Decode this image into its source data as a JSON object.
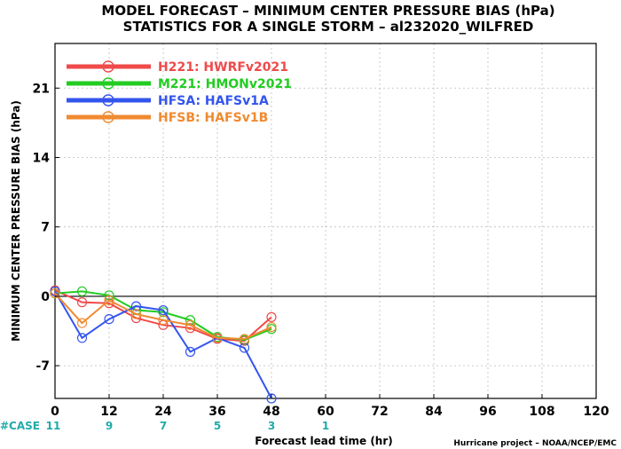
{
  "chart_data": {
    "type": "line",
    "title": "MODEL FORECAST – MINIMUM CENTER PRESSURE BIAS (hPa)",
    "subtitle": "STATISTICS FOR A SINGLE STORM – al232020_WILFRED",
    "xlabel": "Forecast lead time (hr)",
    "ylabel": "MINIMUM CENTER PRESSURE BIAS (hPa)",
    "xlim": [
      0,
      120
    ],
    "ylim": [
      -10.3,
      25.5
    ],
    "x_ticks": [
      0,
      12,
      24,
      36,
      48,
      60,
      72,
      84,
      96,
      108,
      120
    ],
    "x_tick_labels": [
      "0",
      "12",
      "24",
      "36",
      "48",
      "60",
      "72",
      "84",
      "96",
      "108",
      "120"
    ],
    "y_ticks": [
      -7,
      0,
      7,
      14,
      21
    ],
    "y_tick_labels": [
      "-7",
      "0",
      "7",
      "14",
      "21"
    ],
    "grid": true,
    "legend_position": "top-left",
    "series": [
      {
        "name": "H221:  HWRFv2021",
        "color": "#f04a4a",
        "x": [
          0,
          6,
          12,
          18,
          24,
          30,
          36,
          42,
          48
        ],
        "y": [
          0.6,
          -0.6,
          -0.7,
          -2.2,
          -2.9,
          -3.2,
          -4.3,
          -4.5,
          -2.1
        ]
      },
      {
        "name": "M221:  HMONv2021",
        "color": "#22cc22",
        "x": [
          0,
          6,
          12,
          18,
          24,
          30,
          36,
          42,
          48
        ],
        "y": [
          0.3,
          0.5,
          0.1,
          -1.4,
          -1.6,
          -2.4,
          -4.1,
          -4.4,
          -3.3
        ]
      },
      {
        "name": "HFSA:  HAFSv1A",
        "color": "#3355ee",
        "x": [
          0,
          6,
          12,
          18,
          24,
          30,
          36,
          42,
          48
        ],
        "y": [
          0.5,
          -4.2,
          -2.3,
          -1.0,
          -1.4,
          -5.6,
          -4.2,
          -5.2,
          -10.3
        ]
      },
      {
        "name": "HFSB:  HAFSv1B",
        "color": "#f08a30",
        "x": [
          0,
          6,
          12,
          18,
          24,
          30,
          36,
          42,
          48
        ],
        "y": [
          0.3,
          -2.7,
          -0.4,
          -1.8,
          -2.4,
          -2.9,
          -4.2,
          -4.3,
          -3.1
        ]
      }
    ],
    "case_counts": {
      "label": "#CASE",
      "x": [
        0,
        12,
        24,
        36,
        48,
        60
      ],
      "values": [
        "11",
        "9",
        "7",
        "5",
        "3",
        "1"
      ],
      "color": "#22aaaa"
    }
  },
  "footer": {
    "credit": "Hurricane project – NOAA/NCEP/EMC"
  }
}
